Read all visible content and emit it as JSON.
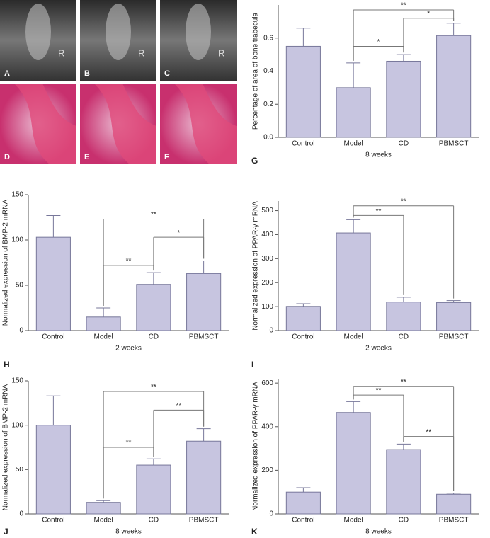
{
  "images": [
    {
      "label": "A",
      "marker": "R"
    },
    {
      "label": "B",
      "marker": "R"
    },
    {
      "label": "C",
      "marker": "R"
    },
    {
      "label": "D"
    },
    {
      "label": "E"
    },
    {
      "label": "F"
    }
  ],
  "chart_data": [
    {
      "type": "bar",
      "panel": "G",
      "ylabel": "Percentage of area of bone trabecula",
      "xlabel": "8 weeks",
      "categories": [
        "Control",
        "Model",
        "CD",
        "PBMSCT"
      ],
      "values": [
        0.55,
        0.3,
        0.46,
        0.615
      ],
      "errors": [
        0.11,
        0.15,
        0.04,
        0.075
      ],
      "ylim": [
        0,
        0.8
      ],
      "yticks": [
        {
          "value": 0,
          "label": "0.0"
        },
        0.2,
        0.4,
        0.6
      ],
      "brackets": [
        {
          "from": 1,
          "to": 3,
          "y": 0.77,
          "label": "**"
        },
        {
          "from": 2,
          "to": 3,
          "y": 0.72,
          "label": "*"
        },
        {
          "from": 1,
          "to": 2,
          "y": 0.55,
          "label": "*"
        }
      ]
    },
    {
      "type": "bar",
      "panel": "H",
      "ylabel": "Normalized expression of BMP-2 mRNA",
      "xlabel": "2 weeks",
      "categories": [
        "Control",
        "Model",
        "CD",
        "PBMSCT"
      ],
      "values": [
        103,
        15,
        51,
        63
      ],
      "errors": [
        24,
        10,
        13,
        14
      ],
      "ylim": [
        0,
        150
      ],
      "yticks": [
        0,
        50,
        100,
        150
      ],
      "brackets": [
        {
          "from": 1,
          "to": 3,
          "y": 123,
          "label": "**"
        },
        {
          "from": 2,
          "to": 3,
          "y": 103,
          "label": "*"
        },
        {
          "from": 1,
          "to": 2,
          "y": 72,
          "label": "**"
        }
      ]
    },
    {
      "type": "bar",
      "panel": "I",
      "ylabel": "Normalized expression of PPAR-γ mRNA",
      "xlabel": "2 weeks",
      "categories": [
        "Control",
        "Model",
        "CD",
        "PBMSCT"
      ],
      "values": [
        101,
        407,
        119,
        117
      ],
      "errors": [
        11,
        55,
        20,
        8
      ],
      "ylim": [
        0,
        540
      ],
      "yticks": [
        0,
        100,
        200,
        300,
        400,
        500
      ],
      "brackets": [
        {
          "from": 1,
          "to": 3,
          "y": 520,
          "label": "**"
        },
        {
          "from": 1,
          "to": 2,
          "y": 480,
          "label": "**"
        }
      ]
    },
    {
      "type": "bar",
      "panel": "J",
      "ylabel": "Normalized expression of BMP-2 mRNA",
      "xlabel": "8 weeks",
      "categories": [
        "Control",
        "Model",
        "CD",
        "PBMSCT"
      ],
      "values": [
        100,
        13,
        55,
        82
      ],
      "errors": [
        33,
        2,
        7,
        14
      ],
      "ylim": [
        0,
        150
      ],
      "yticks": [
        0,
        50,
        100,
        150
      ],
      "brackets": [
        {
          "from": 1,
          "to": 3,
          "y": 138,
          "label": "**"
        },
        {
          "from": 2,
          "to": 3,
          "y": 117,
          "label": "**"
        },
        {
          "from": 1,
          "to": 2,
          "y": 75,
          "label": "**"
        }
      ]
    },
    {
      "type": "bar",
      "panel": "K",
      "ylabel": "Normalized expression of PPAR-γ mRNA",
      "xlabel": "8 weeks",
      "categories": [
        "Control",
        "Model",
        "CD",
        "PBMSCT"
      ],
      "values": [
        100,
        465,
        295,
        90
      ],
      "errors": [
        20,
        50,
        25,
        5
      ],
      "ylim": [
        0,
        620
      ],
      "yticks": [
        0,
        200,
        400,
        600
      ],
      "brackets": [
        {
          "from": 1,
          "to": 3,
          "y": 585,
          "label": "**"
        },
        {
          "from": 1,
          "to": 2,
          "y": 545,
          "label": "**"
        },
        {
          "from": 2,
          "to": 3,
          "y": 355,
          "label": "**"
        }
      ]
    }
  ]
}
